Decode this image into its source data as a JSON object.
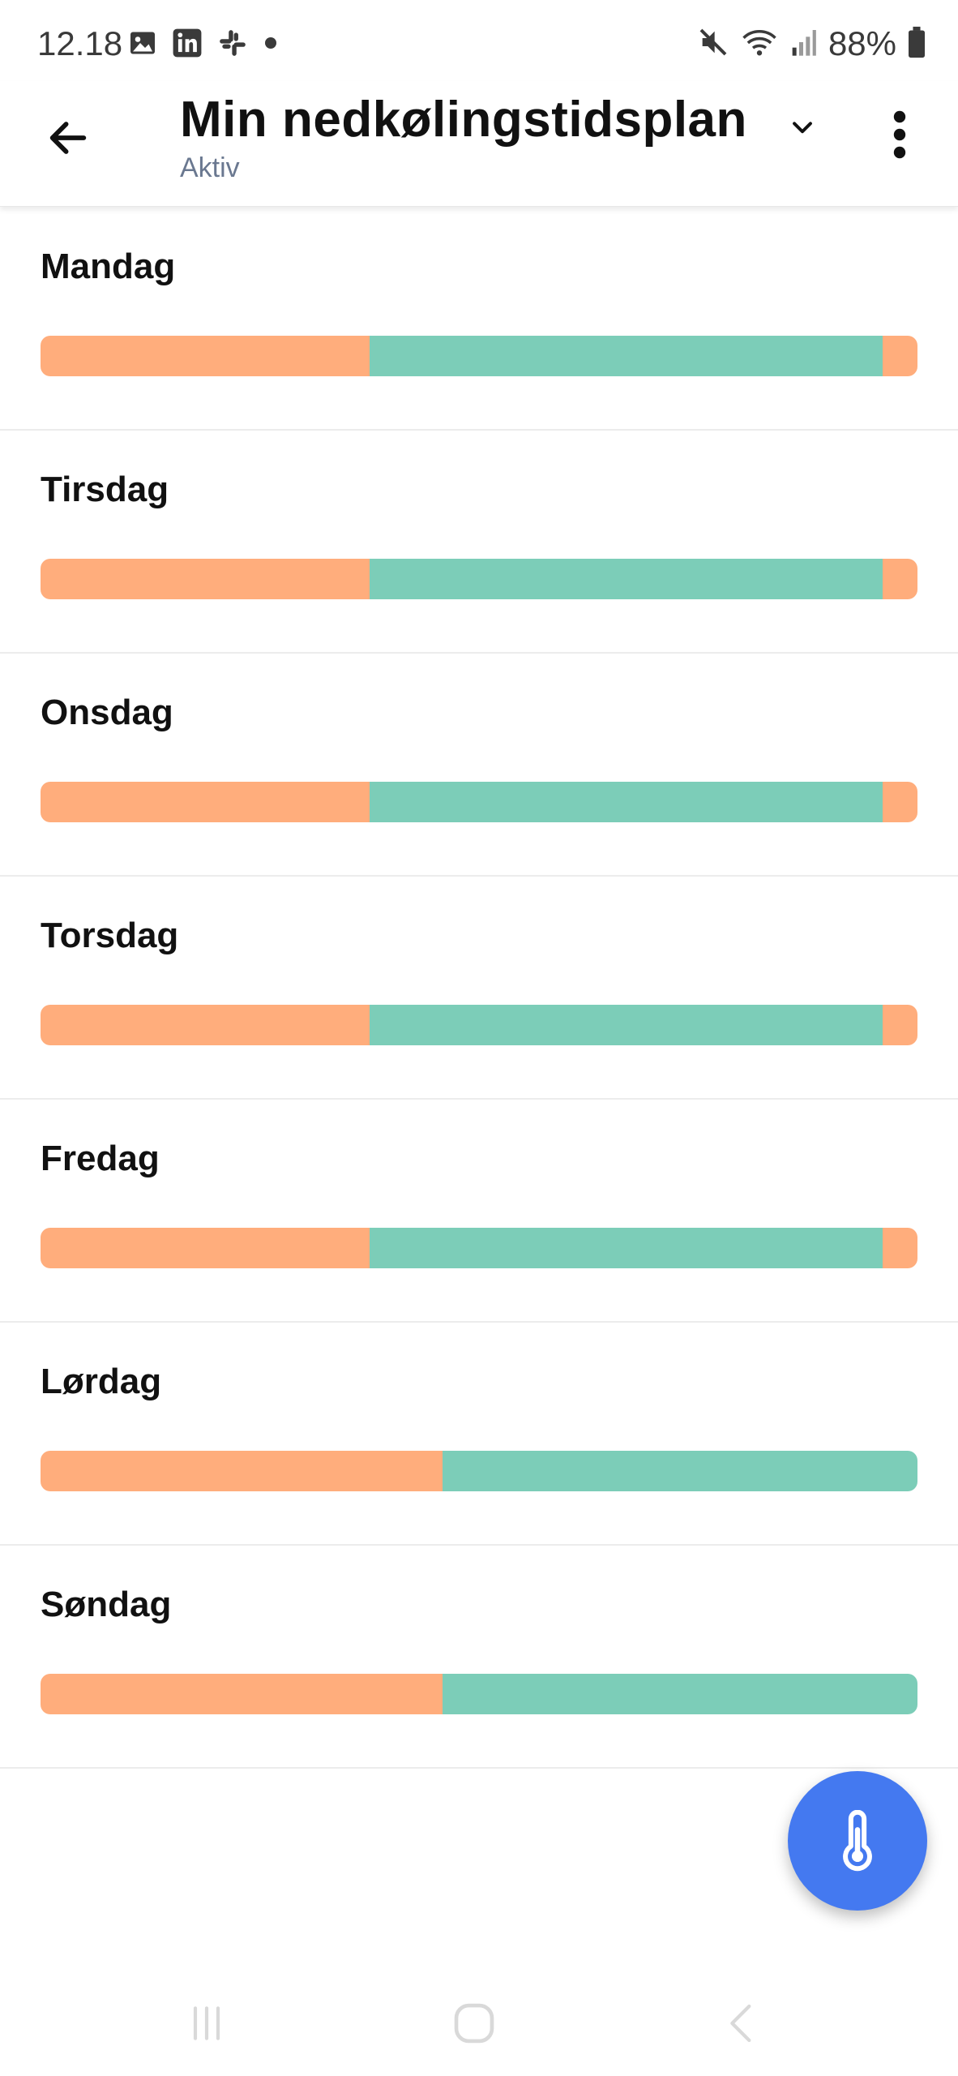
{
  "status_bar": {
    "time": "12.18",
    "battery": "88%",
    "icons": [
      "gallery-icon",
      "linkedin-icon",
      "slack-icon",
      "dot-icon",
      "mute-icon",
      "wifi-icon",
      "signal-icon",
      "battery-icon"
    ]
  },
  "app_bar": {
    "title": "Min nedkølingstidsplan",
    "subtitle": "Aktiv",
    "icons": [
      "arrow-left-icon",
      "chevron-down-icon",
      "more-vertical-icon"
    ]
  },
  "colors": {
    "off": "#FFAD7C",
    "cooling": "#7CCDB8",
    "fab": "#4479F0"
  },
  "days": [
    {
      "label": "Mandag",
      "segments": [
        {
          "type": "off",
          "fraction": 0.375
        },
        {
          "type": "cooling",
          "fraction": 0.585
        },
        {
          "type": "off",
          "fraction": 0.04
        }
      ]
    },
    {
      "label": "Tirsdag",
      "segments": [
        {
          "type": "off",
          "fraction": 0.375
        },
        {
          "type": "cooling",
          "fraction": 0.585
        },
        {
          "type": "off",
          "fraction": 0.04
        }
      ]
    },
    {
      "label": "Onsdag",
      "segments": [
        {
          "type": "off",
          "fraction": 0.375
        },
        {
          "type": "cooling",
          "fraction": 0.585
        },
        {
          "type": "off",
          "fraction": 0.04
        }
      ]
    },
    {
      "label": "Torsdag",
      "segments": [
        {
          "type": "off",
          "fraction": 0.375
        },
        {
          "type": "cooling",
          "fraction": 0.585
        },
        {
          "type": "off",
          "fraction": 0.04
        }
      ]
    },
    {
      "label": "Fredag",
      "segments": [
        {
          "type": "off",
          "fraction": 0.375
        },
        {
          "type": "cooling",
          "fraction": 0.585
        },
        {
          "type": "off",
          "fraction": 0.04
        }
      ]
    },
    {
      "label": "Lørdag",
      "segments": [
        {
          "type": "off",
          "fraction": 0.458
        },
        {
          "type": "cooling",
          "fraction": 0.542
        }
      ]
    },
    {
      "label": "Søndag",
      "segments": [
        {
          "type": "off",
          "fraction": 0.458
        },
        {
          "type": "cooling",
          "fraction": 0.542
        }
      ]
    }
  ],
  "fab": {
    "icon": "thermometer-icon"
  },
  "nav_bar": {
    "icons": [
      "recent-apps-icon",
      "home-icon",
      "back-icon"
    ]
  }
}
